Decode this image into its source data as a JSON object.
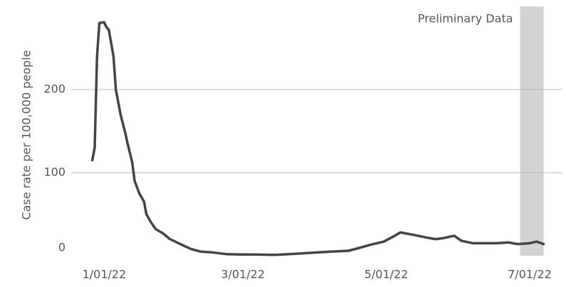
{
  "chart_data": {
    "type": "line",
    "y_axis_label": "Case rate per 100,000 people",
    "x": [
      "2022-01-02",
      "2022-01-03",
      "2022-01-04",
      "2022-01-05",
      "2022-01-07",
      "2022-01-08",
      "2022-01-09",
      "2022-01-11",
      "2022-01-12",
      "2022-01-14",
      "2022-01-16",
      "2022-01-17",
      "2022-01-19",
      "2022-01-20",
      "2022-01-22",
      "2022-01-24",
      "2022-01-25",
      "2022-01-27",
      "2022-01-29",
      "2022-02-01",
      "2022-02-04",
      "2022-02-07",
      "2022-02-10",
      "2022-02-13",
      "2022-02-17",
      "2022-02-22",
      "2022-02-28",
      "2022-03-06",
      "2022-03-12",
      "2022-03-21",
      "2022-03-30",
      "2022-04-08",
      "2022-04-14",
      "2022-04-21",
      "2022-04-25",
      "2022-04-30",
      "2022-05-06",
      "2022-05-10",
      "2022-05-13",
      "2022-05-15",
      "2022-05-19",
      "2022-05-24",
      "2022-05-28",
      "2022-05-31",
      "2022-06-05",
      "2022-06-08",
      "2022-06-13",
      "2022-06-17",
      "2022-06-23",
      "2022-06-28",
      "2022-07-02",
      "2022-07-07",
      "2022-07-10",
      "2022-07-13"
    ],
    "series": [
      {
        "name": "Case rate",
        "color": "#444444",
        "values": [
          115,
          130,
          240,
          280,
          281,
          275,
          272,
          240,
          200,
          170,
          148,
          135,
          112,
          90,
          75,
          65,
          50,
          40,
          32,
          27,
          20,
          16,
          12,
          8,
          5,
          4,
          2,
          1.5,
          1.5,
          1,
          2.5,
          4,
          5,
          6,
          9,
          13,
          17,
          23,
          28,
          27,
          25,
          22,
          20,
          21,
          24,
          18,
          15,
          15,
          15,
          16,
          14,
          15,
          17,
          14
        ]
      }
    ],
    "shaded_region": {
      "x": [
        "2022-07-03",
        "2022-07-13"
      ],
      "label": "Preliminary Data",
      "color": "#d3d3d3"
    },
    "xlim": [
      "2021-12-24",
      "2022-07-21"
    ],
    "xticks": [
      {
        "value": "2022-01-01",
        "label": "1/01/22"
      },
      {
        "value": "2022-03-01",
        "label": "3/01/22"
      },
      {
        "value": "2022-05-01",
        "label": "5/01/22"
      },
      {
        "value": "2022-07-01",
        "label": "7/01/22"
      }
    ],
    "ylim": [
      0,
      300
    ],
    "yticks": [
      0,
      100,
      200
    ],
    "grid": true
  }
}
